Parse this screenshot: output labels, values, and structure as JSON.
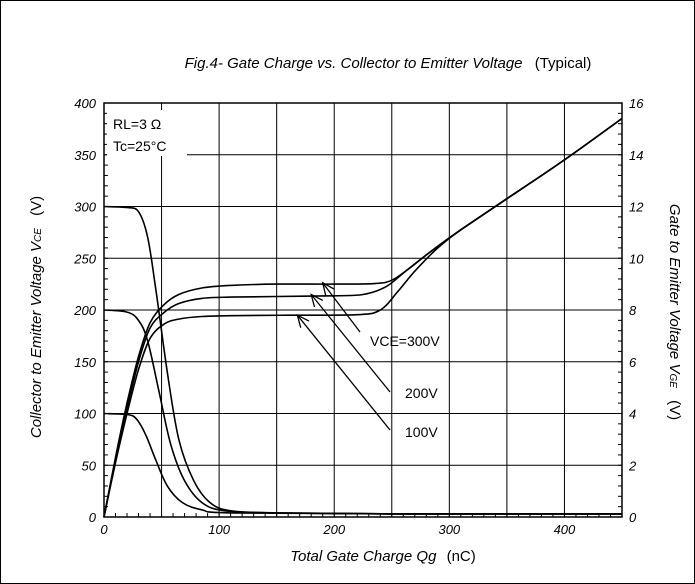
{
  "chart_data": {
    "type": "line",
    "title_main": "Fig.4- Gate Charge vs. Collector to Emitter Voltage",
    "title_suffix": "(Typical)",
    "xlabel_main": "Total Gate Charge Qg",
    "xlabel_unit": "(nC)",
    "ylabel_left_main": "Collector to Emitter Voltage V",
    "ylabel_left_sub": "CE",
    "ylabel_left_unit": "(V)",
    "ylabel_right_main": "Gate to Emitter Voltage V",
    "ylabel_right_sub": "GE",
    "ylabel_right_unit": "(V)",
    "xlim": [
      0,
      450
    ],
    "ylim_left": [
      0,
      400
    ],
    "ylim_right": [
      0,
      16
    ],
    "x_ticks": [
      "0",
      "100",
      "200",
      "300",
      "400"
    ],
    "y_left_ticks": [
      "0",
      "50",
      "100",
      "150",
      "200",
      "250",
      "300",
      "350",
      "400"
    ],
    "y_right_ticks": [
      "0",
      "2",
      "4",
      "6",
      "8",
      "10",
      "12",
      "14",
      "16"
    ],
    "grid": true,
    "conditions": {
      "rl": "RL=3 Ω",
      "tc": "Tc=25°C"
    },
    "annotations": {
      "v300": "VCE=300V",
      "v200": "200V",
      "v100": "100V"
    },
    "vce_series": [
      {
        "label": "VCE=300V",
        "points": [
          [
            0,
            300
          ],
          [
            20,
            299
          ],
          [
            30,
            295
          ],
          [
            38,
            270
          ],
          [
            45,
            220
          ],
          [
            55,
            140
          ],
          [
            65,
            75
          ],
          [
            78,
            35
          ],
          [
            92,
            14
          ],
          [
            110,
            6
          ],
          [
            150,
            4
          ],
          [
            250,
            3
          ],
          [
            450,
            3
          ]
        ]
      },
      {
        "label": "200V",
        "points": [
          [
            0,
            200
          ],
          [
            20,
            198
          ],
          [
            30,
            190
          ],
          [
            38,
            170
          ],
          [
            48,
            120
          ],
          [
            58,
            70
          ],
          [
            70,
            35
          ],
          [
            85,
            14
          ],
          [
            105,
            6
          ],
          [
            150,
            4
          ],
          [
            250,
            3
          ],
          [
            450,
            3
          ]
        ]
      },
      {
        "label": "100V",
        "points": [
          [
            0,
            100
          ],
          [
            20,
            99
          ],
          [
            28,
            95
          ],
          [
            36,
            80
          ],
          [
            45,
            55
          ],
          [
            55,
            30
          ],
          [
            68,
            14
          ],
          [
            85,
            7
          ],
          [
            110,
            4
          ],
          [
            250,
            3
          ],
          [
            450,
            3
          ]
        ]
      }
    ],
    "vge_series": [
      {
        "label": "VCE=300V",
        "points": [
          [
            0,
            0
          ],
          [
            10,
            2.3
          ],
          [
            20,
            4.4
          ],
          [
            30,
            6.2
          ],
          [
            40,
            7.5
          ],
          [
            52,
            8.2
          ],
          [
            65,
            8.6
          ],
          [
            85,
            8.85
          ],
          [
            110,
            8.95
          ],
          [
            150,
            9.0
          ],
          [
            200,
            9.0
          ],
          [
            235,
            9.02
          ],
          [
            250,
            9.15
          ],
          [
            265,
            9.6
          ],
          [
            285,
            10.3
          ],
          [
            310,
            11.1
          ],
          [
            350,
            12.3
          ],
          [
            400,
            13.8
          ],
          [
            450,
            15.4
          ]
        ]
      },
      {
        "label": "200V",
        "points": [
          [
            0,
            0
          ],
          [
            10,
            2.2
          ],
          [
            20,
            4.2
          ],
          [
            30,
            6.0
          ],
          [
            40,
            7.3
          ],
          [
            52,
            7.9
          ],
          [
            65,
            8.25
          ],
          [
            85,
            8.45
          ],
          [
            110,
            8.5
          ],
          [
            150,
            8.52
          ],
          [
            200,
            8.55
          ],
          [
            225,
            8.6
          ],
          [
            245,
            8.9
          ],
          [
            262,
            9.5
          ],
          [
            285,
            10.3
          ],
          [
            310,
            11.1
          ],
          [
            350,
            12.3
          ],
          [
            400,
            13.8
          ],
          [
            450,
            15.4
          ]
        ]
      },
      {
        "label": "100V",
        "points": [
          [
            0,
            0
          ],
          [
            10,
            2.1
          ],
          [
            20,
            4.0
          ],
          [
            30,
            5.7
          ],
          [
            40,
            6.9
          ],
          [
            52,
            7.45
          ],
          [
            65,
            7.65
          ],
          [
            85,
            7.75
          ],
          [
            110,
            7.78
          ],
          [
            160,
            7.8
          ],
          [
            220,
            7.82
          ],
          [
            240,
            8.0
          ],
          [
            255,
            8.7
          ],
          [
            270,
            9.5
          ],
          [
            290,
            10.4
          ],
          [
            310,
            11.1
          ],
          [
            350,
            12.3
          ],
          [
            400,
            13.8
          ],
          [
            450,
            15.4
          ]
        ]
      }
    ],
    "arrow_tips": [
      {
        "label": "VCE=300V",
        "x": 190,
        "y_right": 9.05
      },
      {
        "label": "200V",
        "x": 180,
        "y_right": 8.6
      },
      {
        "label": "100V",
        "x": 168,
        "y_right": 7.8
      }
    ]
  }
}
